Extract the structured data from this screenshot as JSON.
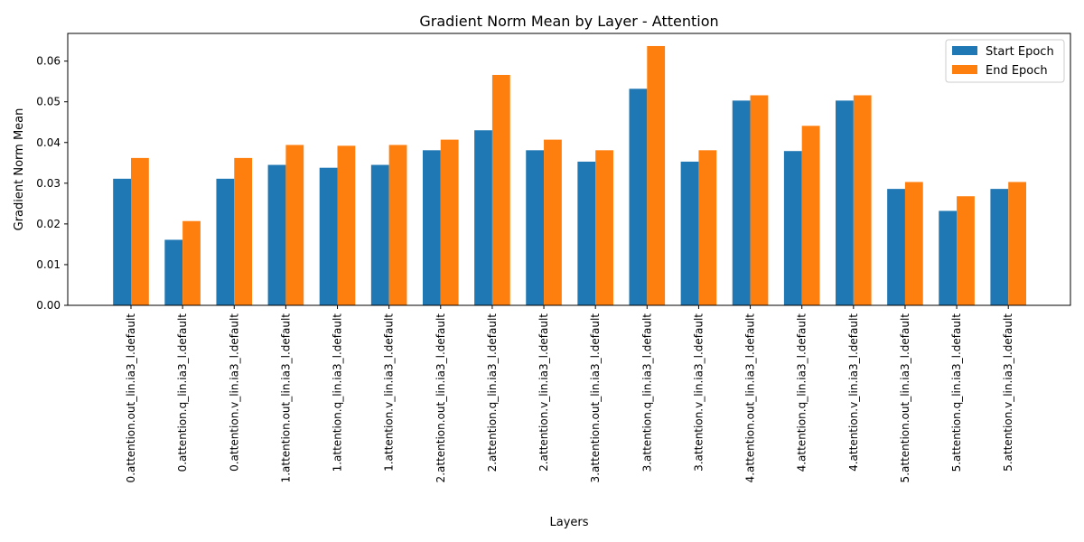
{
  "chart_data": {
    "type": "bar",
    "title": "Gradient Norm Mean by Layer - Attention",
    "xlabel": "Layers",
    "ylabel": "Gradient Norm Mean",
    "ylim": [
      0,
      0.0668
    ],
    "yticks": [
      0.0,
      0.01,
      0.02,
      0.03,
      0.04,
      0.05,
      0.06
    ],
    "ytick_labels": [
      "0.00",
      "0.01",
      "0.02",
      "0.03",
      "0.04",
      "0.05",
      "0.06"
    ],
    "grid": false,
    "legend_position": "top-right",
    "categories": [
      "0.attention.out_lin.ia3_l.default",
      "0.attention.q_lin.ia3_l.default",
      "0.attention.v_lin.ia3_l.default",
      "1.attention.out_lin.ia3_l.default",
      "1.attention.q_lin.ia3_l.default",
      "1.attention.v_lin.ia3_l.default",
      "2.attention.out_lin.ia3_l.default",
      "2.attention.q_lin.ia3_l.default",
      "2.attention.v_lin.ia3_l.default",
      "3.attention.out_lin.ia3_l.default",
      "3.attention.q_lin.ia3_l.default",
      "3.attention.v_lin.ia3_l.default",
      "4.attention.out_lin.ia3_l.default",
      "4.attention.q_lin.ia3_l.default",
      "4.attention.v_lin.ia3_l.default",
      "5.attention.out_lin.ia3_l.default",
      "5.attention.q_lin.ia3_l.default",
      "5.attention.v_lin.ia3_l.default"
    ],
    "series": [
      {
        "name": "Start Epoch",
        "color": "#1f77b4",
        "values": [
          0.0311,
          0.0161,
          0.0311,
          0.0345,
          0.0338,
          0.0345,
          0.0381,
          0.043,
          0.0381,
          0.0353,
          0.0532,
          0.0353,
          0.0503,
          0.0379,
          0.0503,
          0.0286,
          0.0232,
          0.0286
        ]
      },
      {
        "name": "End Epoch",
        "color": "#ff7f0e",
        "values": [
          0.0362,
          0.0207,
          0.0362,
          0.0394,
          0.0392,
          0.0394,
          0.0407,
          0.0566,
          0.0407,
          0.0381,
          0.0637,
          0.0381,
          0.0516,
          0.0441,
          0.0516,
          0.0303,
          0.0268,
          0.0303
        ]
      }
    ]
  }
}
